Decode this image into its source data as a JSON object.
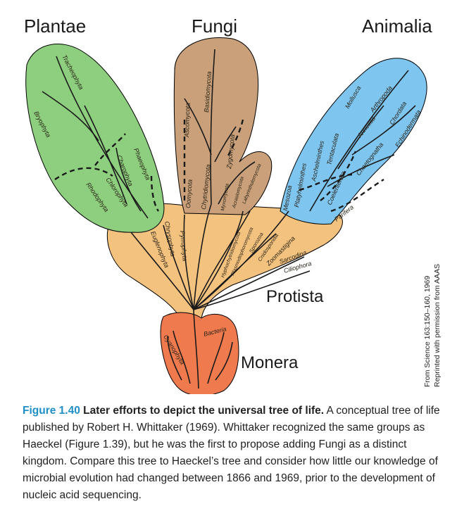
{
  "kingdoms": {
    "plantae": "Plantae",
    "fungi": "Fungi",
    "animalia": "Animalia",
    "protista": "Protista",
    "monera": "Monera"
  },
  "groups": {
    "plantae": [
      "Tracheophyta",
      "Bryophyta",
      "Phaeophyta",
      "Charophyta",
      "Chlorophyta",
      "Rhodophyta"
    ],
    "fungi": [
      "Ascomycota",
      "Basidiomycota",
      "Zygomycota",
      "Chytridiomycota",
      "Oomycota",
      "Myxomycota",
      "Acrasiomycota",
      "Labyrinthulomycota"
    ],
    "animalia": [
      "Mollusca",
      "Arthropoda",
      "Annelida",
      "Chordata",
      "Echinodermata",
      "Chaetognatha",
      "Tentaculata",
      "Aschelminthes",
      "Platyhelminthes",
      "Mesozoa",
      "Coelenterata",
      "Parifera"
    ],
    "protista": [
      "Chrysophyta",
      "Pyrrophyta",
      "Euglenophyta",
      "Hyphochytridiomycota",
      "Plasmodiophoromycota",
      "Sporozoa",
      "Cnidosporidia",
      "Zoomastigina",
      "Sarcodina",
      "Ciliophora"
    ],
    "monera": [
      "Bacteria",
      "Cyanophyta"
    ]
  },
  "colors": {
    "plantae": "#8dcf7e",
    "fungi": "#c9a079",
    "animalia": "#7ec5ef",
    "protista": "#f4c27f",
    "monera": "#ef7a4e",
    "figure_number": "#1f8fc7"
  },
  "credit": {
    "line1": "From Science 163:150–160, 1969",
    "line2": "Reprinted with permission from AAAS"
  },
  "caption": {
    "number": "Figure 1.40",
    "title": "Later efforts to depict the universal tree of life.",
    "body": "A conceptual tree of life published by Robert H. Whittaker (1969). Whittaker recognized the same groups as Haeckel (Figure 1.39), but he was the first to propose adding Fungi as a distinct kingdom. Compare this tree to Haeckel’s tree and consider how little our knowledge of microbial evolution had changed between 1866 and 1969, prior to the development of nucleic acid sequencing."
  }
}
